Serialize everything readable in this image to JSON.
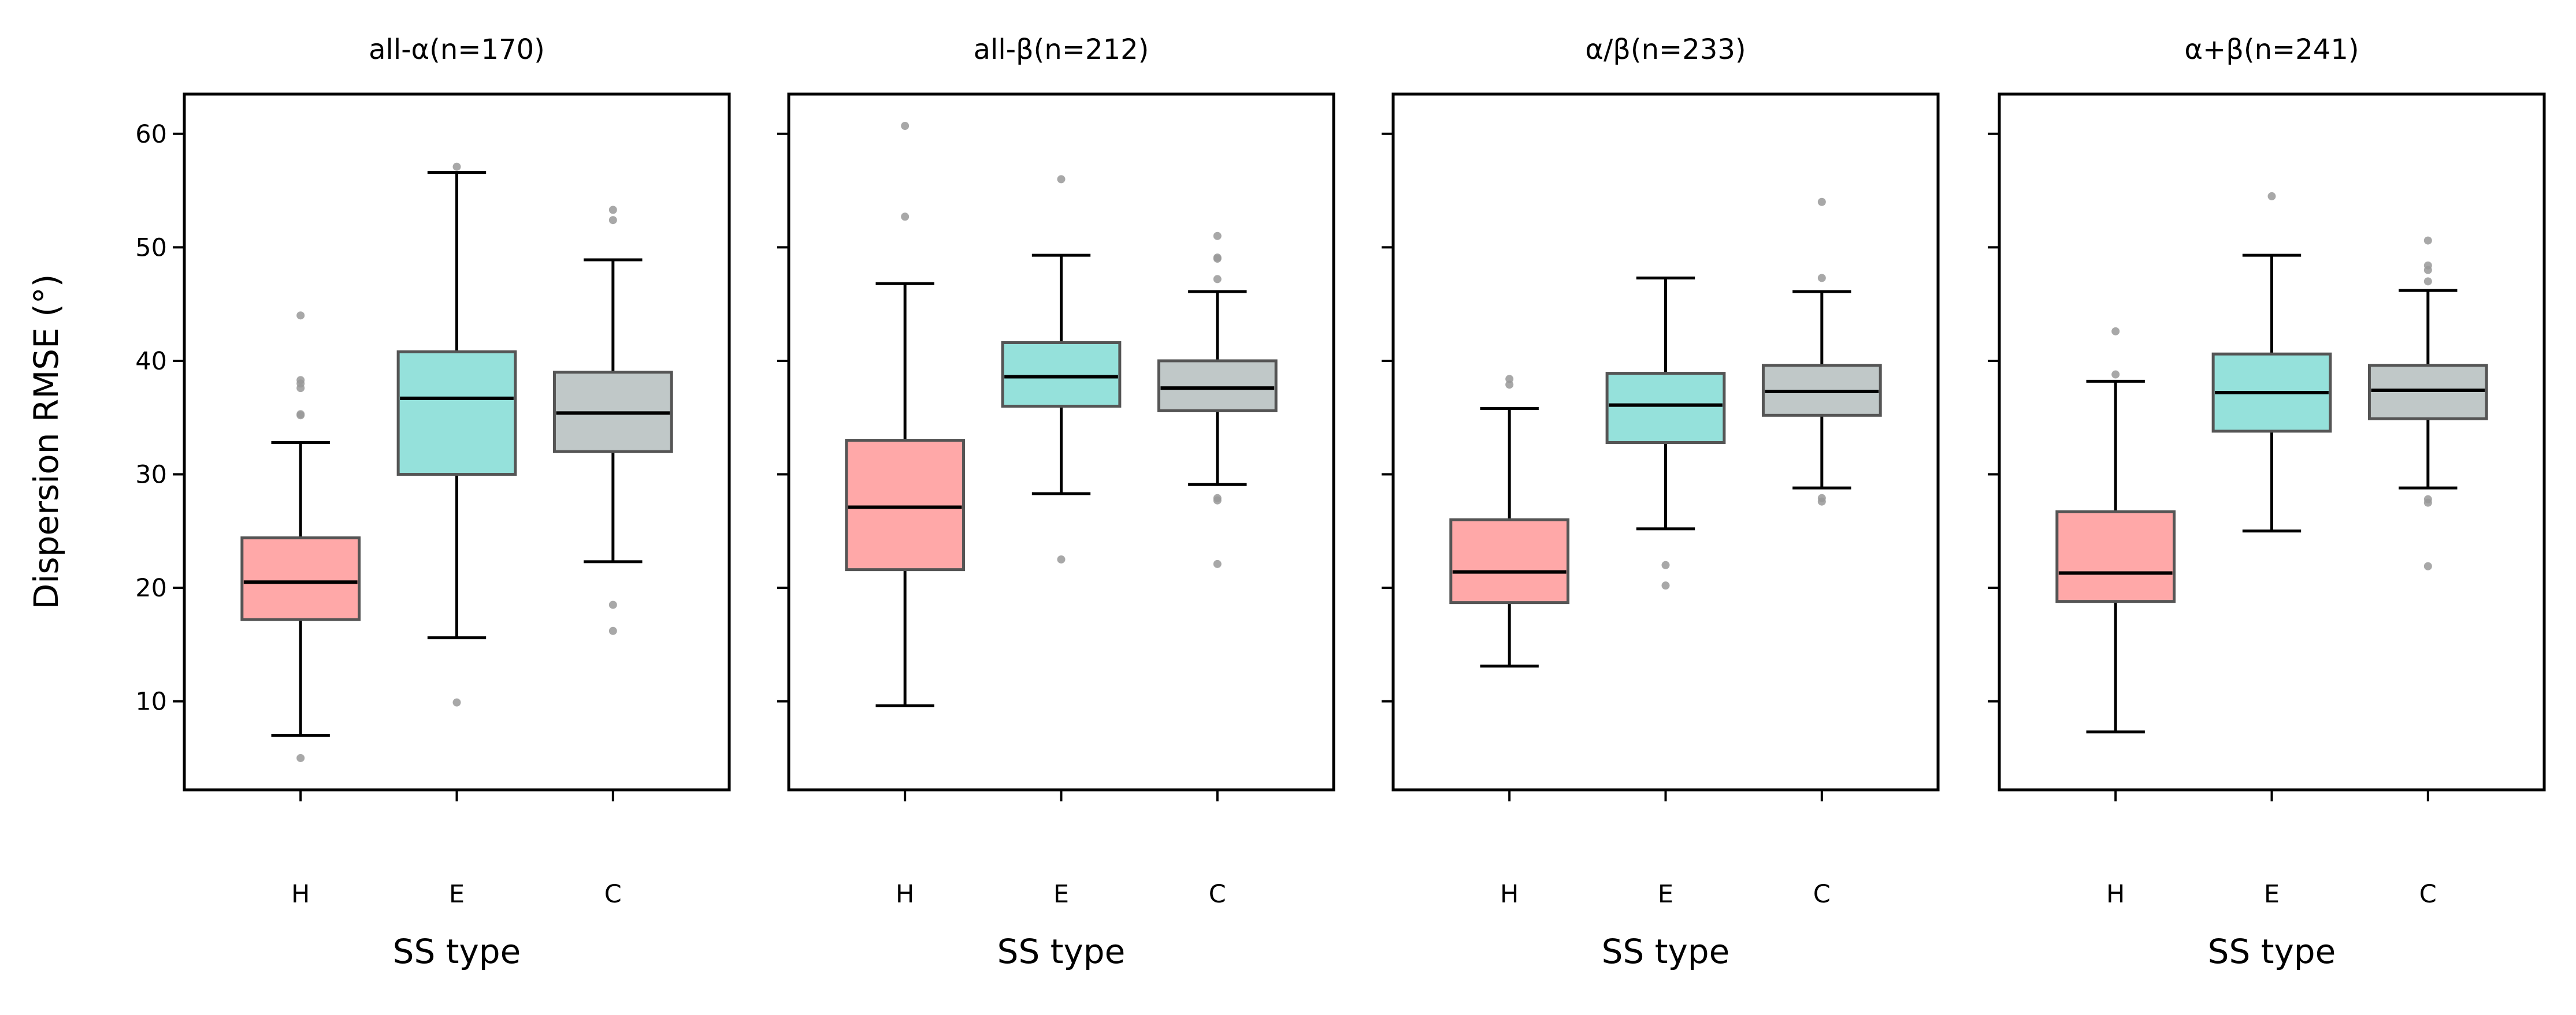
{
  "chart_data": {
    "type": "box",
    "ylabel": "Dispersion RMSE (°)",
    "ylim": [
      2.2,
      63.5
    ],
    "yticks": [
      10,
      20,
      30,
      40,
      50,
      60
    ],
    "shared_y": true,
    "grid": false,
    "categories": [
      "H",
      "E",
      "C"
    ],
    "category_colors": {
      "H": "#ffa8a8",
      "E": "#95e1db",
      "C": "#c0c8c8"
    },
    "box_edge_color": "#555555",
    "median_color": "#000000",
    "outlier_color": "#999999",
    "panels": [
      {
        "title": "all-α(n=170)",
        "xlabel": "SS type",
        "boxes": [
          {
            "category": "H",
            "whisker_low": 7.0,
            "q1": 17.2,
            "median": 20.5,
            "q3": 24.4,
            "whisker_high": 32.8,
            "outliers": [
              44.0,
              38.3,
              38.0,
              37.6,
              35.3,
              35.2,
              5.0
            ]
          },
          {
            "category": "E",
            "whisker_low": 15.6,
            "q1": 30.0,
            "median": 36.7,
            "q3": 40.8,
            "whisker_high": 56.6,
            "outliers": [
              57.1,
              9.9
            ]
          },
          {
            "category": "C",
            "whisker_low": 22.3,
            "q1": 32.0,
            "median": 35.4,
            "q3": 39.0,
            "whisker_high": 48.9,
            "outliers": [
              53.3,
              52.4,
              18.5,
              16.2
            ]
          }
        ]
      },
      {
        "title": "all-β(n=212)",
        "xlabel": "SS type",
        "boxes": [
          {
            "category": "H",
            "whisker_low": 9.6,
            "q1": 21.6,
            "median": 27.1,
            "q3": 33.0,
            "whisker_high": 46.8,
            "outliers": [
              60.7,
              52.7
            ]
          },
          {
            "category": "E",
            "whisker_low": 28.3,
            "q1": 36.0,
            "median": 38.6,
            "q3": 41.6,
            "whisker_high": 49.3,
            "outliers": [
              56.0,
              22.5
            ]
          },
          {
            "category": "C",
            "whisker_low": 29.1,
            "q1": 35.6,
            "median": 37.6,
            "q3": 40.0,
            "whisker_high": 46.1,
            "outliers": [
              51.0,
              49.1,
              49.0,
              47.2,
              27.9,
              27.7,
              22.1
            ]
          }
        ]
      },
      {
        "title": "α/β(n=233)",
        "xlabel": "SS type",
        "boxes": [
          {
            "category": "H",
            "whisker_low": 13.1,
            "q1": 18.7,
            "median": 21.4,
            "q3": 26.0,
            "whisker_high": 35.8,
            "outliers": [
              38.4,
              37.9
            ]
          },
          {
            "category": "E",
            "whisker_low": 25.2,
            "q1": 32.8,
            "median": 36.1,
            "q3": 38.9,
            "whisker_high": 47.3,
            "outliers": [
              22.0,
              20.2
            ]
          },
          {
            "category": "C",
            "whisker_low": 28.8,
            "q1": 35.2,
            "median": 37.3,
            "q3": 39.6,
            "whisker_high": 46.1,
            "outliers": [
              54.0,
              47.3,
              27.9,
              27.6
            ]
          }
        ]
      },
      {
        "title": "α+β(n=241)",
        "xlabel": "SS type",
        "boxes": [
          {
            "category": "H",
            "whisker_low": 7.3,
            "q1": 18.8,
            "median": 21.3,
            "q3": 26.7,
            "whisker_high": 38.2,
            "outliers": [
              42.6,
              38.8
            ]
          },
          {
            "category": "E",
            "whisker_low": 25.0,
            "q1": 33.8,
            "median": 37.2,
            "q3": 40.6,
            "whisker_high": 49.3,
            "outliers": [
              54.5
            ]
          },
          {
            "category": "C",
            "whisker_low": 28.8,
            "q1": 34.9,
            "median": 37.4,
            "q3": 39.6,
            "whisker_high": 46.2,
            "outliers": [
              50.6,
              48.4,
              48.0,
              47.0,
              27.8,
              27.5,
              21.9
            ]
          }
        ]
      }
    ]
  }
}
